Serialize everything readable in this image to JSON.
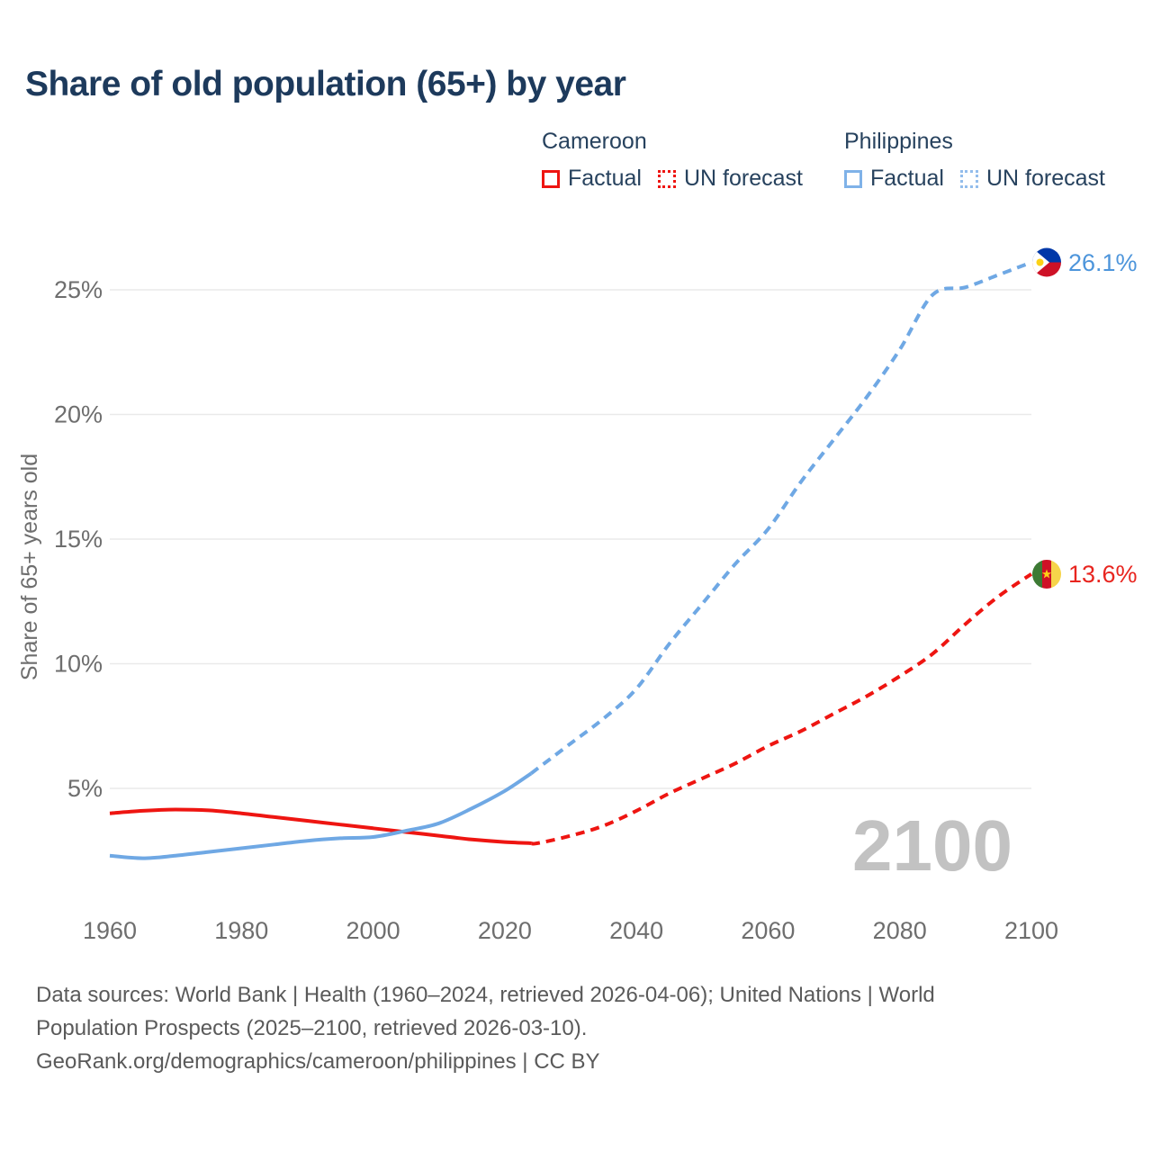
{
  "title": "Share of old population (65+) by year",
  "legend": {
    "groups": [
      {
        "name": "Cameroon",
        "factual": "Factual",
        "forecast": "UN forecast",
        "color": "#ee1511"
      },
      {
        "name": "Philippines",
        "factual": "Factual",
        "forecast": "UN forecast",
        "color": "#7fb2e8"
      }
    ]
  },
  "watermark": "2100",
  "footer": {
    "lines": [
      "Data sources: World Bank | Health (1960–2024, retrieved 2026-04-06); United Nations | World",
      "Population Prospects (2025–2100, retrieved 2026-03-10).",
      "GeoRank.org/demographics/cameroon/philippines | CC BY"
    ]
  },
  "chart_data": {
    "type": "line",
    "title": "Share of old population (65+) by year",
    "xlabel": "",
    "ylabel": "Share of 65+ years old",
    "xlim": [
      1960,
      2100
    ],
    "ylim": [
      0,
      27
    ],
    "grid": "horizontal",
    "legend_position": "top-right",
    "xticks": [
      1960,
      1980,
      2000,
      2020,
      2040,
      2060,
      2080,
      2100
    ],
    "yticks": [
      5,
      10,
      15,
      20,
      25
    ],
    "ytick_suffix": "%",
    "series": [
      {
        "id": "cameroon-factual",
        "name": "Cameroon Factual",
        "style": "solid",
        "color": "#ee1511",
        "x": [
          1960,
          1965,
          1970,
          1975,
          1980,
          1985,
          1990,
          1995,
          2000,
          2005,
          2010,
          2015,
          2020,
          2024
        ],
        "y": [
          4.0,
          4.1,
          4.15,
          4.12,
          4.0,
          3.85,
          3.7,
          3.55,
          3.4,
          3.25,
          3.1,
          2.95,
          2.85,
          2.8
        ]
      },
      {
        "id": "cameroon-forecast",
        "name": "Cameroon UN forecast",
        "style": "dashed",
        "color": "#ee1511",
        "x": [
          2024,
          2025,
          2030,
          2035,
          2040,
          2045,
          2050,
          2055,
          2060,
          2065,
          2070,
          2075,
          2080,
          2085,
          2090,
          2095,
          2100
        ],
        "y": [
          2.8,
          2.8,
          3.1,
          3.5,
          4.1,
          4.8,
          5.4,
          6.0,
          6.7,
          7.3,
          8.0,
          8.7,
          9.5,
          10.4,
          11.6,
          12.7,
          13.6
        ]
      },
      {
        "id": "philippines-factual",
        "name": "Philippines Factual",
        "style": "solid",
        "color": "#6fa8e4",
        "x": [
          1960,
          1965,
          1970,
          1975,
          1980,
          1985,
          1990,
          1995,
          2000,
          2005,
          2010,
          2015,
          2020,
          2024
        ],
        "y": [
          2.3,
          2.2,
          2.3,
          2.45,
          2.6,
          2.75,
          2.9,
          3.0,
          3.05,
          3.3,
          3.6,
          4.2,
          4.9,
          5.6
        ]
      },
      {
        "id": "philippines-forecast",
        "name": "Philippines UN forecast",
        "style": "dashed",
        "color": "#6fa8e4",
        "x": [
          2024,
          2025,
          2030,
          2035,
          2040,
          2045,
          2050,
          2055,
          2060,
          2065,
          2070,
          2075,
          2080,
          2085,
          2090,
          2095,
          2100
        ],
        "y": [
          5.6,
          5.8,
          6.8,
          7.8,
          9.0,
          10.8,
          12.4,
          14.0,
          15.4,
          17.3,
          19.0,
          20.7,
          22.6,
          24.8,
          25.1,
          25.6,
          26.1
        ]
      }
    ],
    "end_labels": {
      "philippines": "26.1%",
      "cameroon": "13.6%"
    }
  }
}
